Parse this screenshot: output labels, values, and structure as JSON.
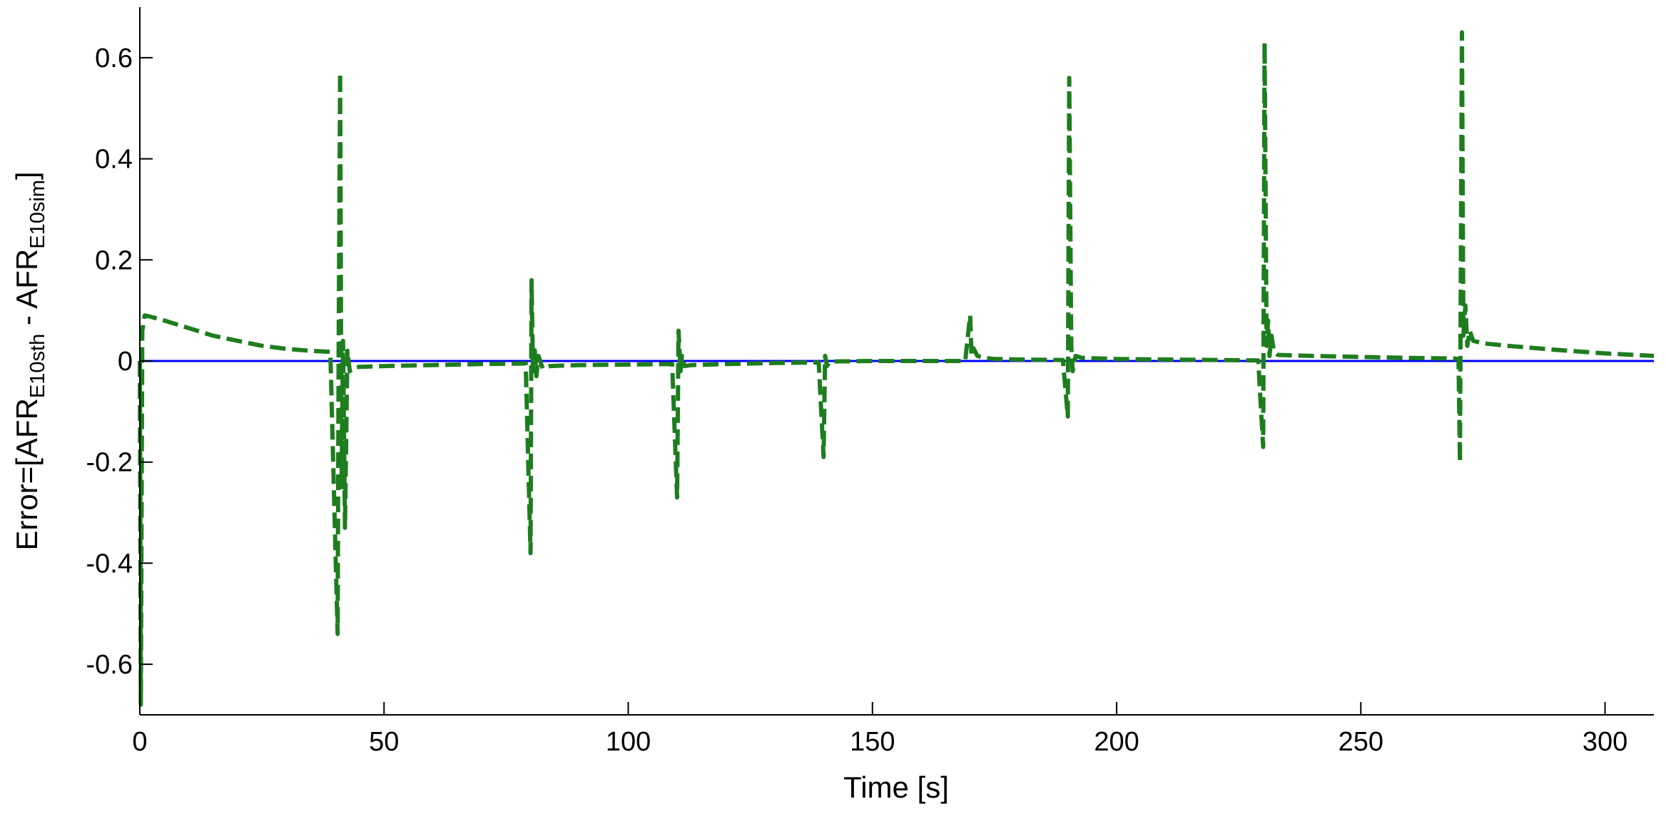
{
  "chart_data": {
    "type": "line",
    "title": "",
    "xlabel": "Time [s]",
    "ylabel": {
      "prefix": "Error=[AFR",
      "sub1": "E10sth",
      "middle": " - AFR",
      "sub2": "E10sim",
      "suffix": "]"
    },
    "xlim": [
      0,
      310
    ],
    "ylim": [
      -0.7,
      0.7
    ],
    "xticks": [
      0,
      50,
      100,
      150,
      200,
      250,
      300
    ],
    "yticks": [
      -0.6,
      -0.4,
      -0.2,
      0,
      0.2,
      0.4,
      0.6
    ],
    "ytick_labels": [
      "-0.6",
      "-0.4",
      "-0.2",
      "0",
      "0.2",
      "0.4",
      "0.6"
    ],
    "grid": false,
    "legend": "none",
    "series": [
      {
        "style": "solid",
        "color": "#0000ff",
        "x": [
          0,
          310
        ],
        "y": [
          0,
          0
        ]
      },
      {
        "style": "dashed",
        "color": "#1e7d1e",
        "x": [
          0,
          0.2,
          0.5,
          1,
          2,
          5,
          10,
          15,
          20,
          25,
          30,
          35,
          39,
          40.5,
          40.7,
          41,
          41.3,
          41.6,
          42,
          42.5,
          43,
          44,
          50,
          60,
          70,
          79,
          80,
          80.2,
          80.5,
          80.8,
          81.2,
          81.6,
          82.5,
          84,
          90,
          100,
          109,
          110,
          110.3,
          110.7,
          111,
          111.5,
          113,
          120,
          130,
          139,
          140,
          140.3,
          140.7,
          141.2,
          142,
          150,
          160,
          169,
          170,
          170.3,
          170.7,
          171.5,
          173,
          175,
          180,
          189,
          190,
          190.3,
          190.7,
          191,
          191.6,
          193,
          200,
          210,
          220,
          229,
          230,
          230.3,
          230.7,
          231,
          231.3,
          231.7,
          232.2,
          233,
          240,
          250,
          260,
          269,
          270,
          270.3,
          270.7,
          271,
          271.4,
          271.8,
          272.3,
          273,
          275,
          280,
          290,
          300,
          310
        ],
        "y": [
          0,
          -0.68,
          0.06,
          0.09,
          0.088,
          0.08,
          0.065,
          0.05,
          0.04,
          0.03,
          0.024,
          0.02,
          0.018,
          -0.54,
          0.01,
          0.57,
          -0.25,
          0.04,
          -0.33,
          0.02,
          -0.02,
          -0.012,
          -0.01,
          -0.008,
          -0.006,
          -0.005,
          -0.38,
          0.16,
          -0.02,
          0.03,
          -0.03,
          0.01,
          -0.015,
          -0.01,
          -0.008,
          -0.007,
          -0.006,
          -0.27,
          0.06,
          -0.02,
          0.01,
          -0.01,
          -0.008,
          -0.006,
          -0.004,
          -0.003,
          -0.19,
          0.01,
          -0.01,
          -0.002,
          -0.001,
          0,
          0,
          0,
          0.09,
          0.01,
          0.025,
          0.01,
          0.006,
          0.004,
          0.003,
          0.002,
          -0.11,
          0.56,
          0.03,
          -0.02,
          0.01,
          0.006,
          0.004,
          0.003,
          0.002,
          0.001,
          -0.17,
          0.63,
          0.03,
          0.08,
          0.01,
          0.05,
          0.02,
          0.012,
          0.01,
          0.008,
          0.006,
          0.005,
          0.004,
          -0.2,
          0.65,
          0.05,
          0.11,
          0.03,
          0.06,
          0.04,
          0.035,
          0.03,
          0.022,
          0.015,
          0.01
        ]
      }
    ]
  }
}
